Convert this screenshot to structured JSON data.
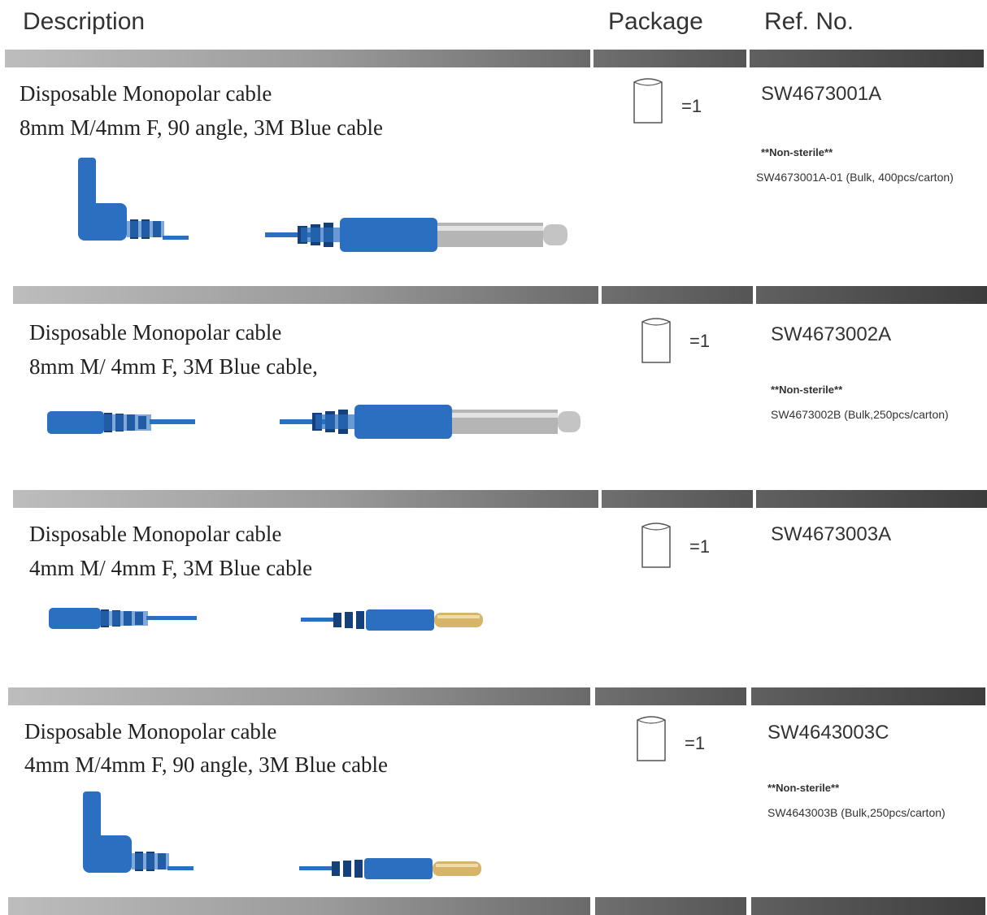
{
  "header": {
    "description": "Description",
    "package": "Package",
    "ref_no": "Ref. No."
  },
  "products": [
    {
      "title": "Disposable Monopolar cable",
      "spec": "8mm M/4mm F, 90 angle, 3M Blue cable",
      "qty": "=1",
      "ref": "SW4673001A",
      "note": "**Non-sterile**",
      "bulk": "SW4673001A-01 (Bulk, 400pcs/carton)"
    },
    {
      "title": "Disposable Monopolar cable",
      "spec": "8mm M/ 4mm F, 3M Blue cable,",
      "qty": "=1",
      "ref": "SW4673002A",
      "note": "**Non-sterile**",
      "bulk": "SW4673002B (Bulk,250pcs/carton)"
    },
    {
      "title": "Disposable Monopolar cable",
      "spec": "4mm M/ 4mm F, 3M Blue cable",
      "qty": "=1",
      "ref": "SW4673003A"
    },
    {
      "title": "Disposable Monopolar cable",
      "spec": "4mm M/4mm F, 90 angle, 3M Blue cable",
      "qty": "=1",
      "ref": "SW4643003C",
      "note": "**Non-sterile**",
      "bulk": "SW4643003B (Bulk,250pcs/carton)"
    }
  ],
  "colors": {
    "cable_blue": "#2a6fc0",
    "cable_dark": "#16407a",
    "metal": "#b5b5b5",
    "brass": "#d6b56a"
  }
}
